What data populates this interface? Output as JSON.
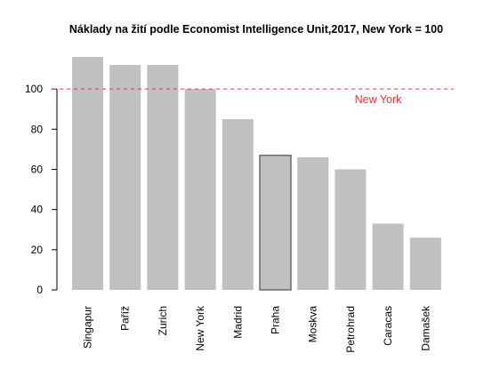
{
  "chart_data": {
    "type": "bar",
    "title": "Náklady na žití podle Economist Intelligence Unit,2017, New York = 100",
    "categories": [
      "Singapur",
      "Paříž",
      "Zurich",
      "New York",
      "Madrid",
      "Praha",
      "Moskva",
      "Petrohrad",
      "Caracas",
      "Damašek"
    ],
    "values": [
      116,
      112,
      112,
      100,
      85,
      67,
      66,
      60,
      33,
      26
    ],
    "highlighted_category": "Praha",
    "ylim": [
      0,
      116
    ],
    "yticks": [
      0,
      20,
      40,
      60,
      80,
      100
    ],
    "ytick_labels": [
      "0",
      "20",
      "40",
      "60",
      "80",
      "100"
    ],
    "xlabel": "",
    "ylabel": "",
    "grid": false,
    "reference_line": {
      "value": 100,
      "label": "New York",
      "color": "#e8333a",
      "style": "dashed"
    },
    "colors": {
      "bar": "#c0c0c0",
      "highlight_border": "#6b6b6b",
      "axis": "#000000"
    }
  }
}
